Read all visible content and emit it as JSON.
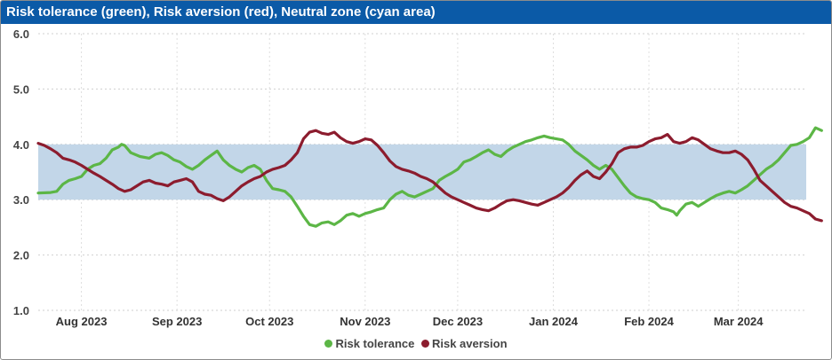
{
  "title": "Risk tolerance (green), Risk aversion (red), Neutral zone (cyan area)",
  "colors": {
    "header": "#0b5aa7",
    "tolerance": "#5cb646",
    "aversion": "#8c1c2e",
    "band": "#c2d6e8"
  },
  "chart_data": {
    "type": "line",
    "ylim": [
      1.0,
      6.0
    ],
    "yticks": [
      "1.0",
      "2.0",
      "3.0",
      "4.0",
      "5.0",
      "6.0"
    ],
    "neutral_zone": [
      3.0,
      4.0
    ],
    "x_tick_labels": [
      {
        "label": "Aug 2023",
        "day": 14
      },
      {
        "label": "Sep 2023",
        "day": 45
      },
      {
        "label": "Oct 2023",
        "day": 75
      },
      {
        "label": "Nov 2023",
        "day": 106
      },
      {
        "label": "Dec 2023",
        "day": 136
      },
      {
        "label": "Jan 2024",
        "day": 167
      },
      {
        "label": "Feb 2024",
        "day": 198
      },
      {
        "label": "Mar 2024",
        "day": 227
      }
    ],
    "x_range_days": [
      0,
      249
    ],
    "grid": "dotted",
    "legend_position": "bottom",
    "series": [
      {
        "name": "Risk tolerance",
        "color": "#5cb646",
        "points": [
          [
            0,
            3.12
          ],
          [
            4,
            3.13
          ],
          [
            6,
            3.15
          ],
          [
            8,
            3.28
          ],
          [
            10,
            3.35
          ],
          [
            12,
            3.38
          ],
          [
            14,
            3.42
          ],
          [
            16,
            3.55
          ],
          [
            18,
            3.62
          ],
          [
            20,
            3.65
          ],
          [
            22,
            3.75
          ],
          [
            24,
            3.9
          ],
          [
            26,
            3.95
          ],
          [
            27,
            4.0
          ],
          [
            28,
            3.98
          ],
          [
            30,
            3.85
          ],
          [
            33,
            3.78
          ],
          [
            36,
            3.75
          ],
          [
            38,
            3.82
          ],
          [
            40,
            3.85
          ],
          [
            42,
            3.8
          ],
          [
            44,
            3.72
          ],
          [
            46,
            3.68
          ],
          [
            48,
            3.6
          ],
          [
            50,
            3.55
          ],
          [
            52,
            3.62
          ],
          [
            54,
            3.72
          ],
          [
            56,
            3.8
          ],
          [
            58,
            3.88
          ],
          [
            60,
            3.72
          ],
          [
            62,
            3.62
          ],
          [
            64,
            3.55
          ],
          [
            66,
            3.5
          ],
          [
            68,
            3.58
          ],
          [
            70,
            3.62
          ],
          [
            72,
            3.55
          ],
          [
            74,
            3.35
          ],
          [
            76,
            3.2
          ],
          [
            78,
            3.18
          ],
          [
            80,
            3.15
          ],
          [
            82,
            3.05
          ],
          [
            84,
            2.88
          ],
          [
            86,
            2.7
          ],
          [
            88,
            2.55
          ],
          [
            90,
            2.52
          ],
          [
            92,
            2.58
          ],
          [
            94,
            2.6
          ],
          [
            96,
            2.55
          ],
          [
            98,
            2.62
          ],
          [
            100,
            2.72
          ],
          [
            102,
            2.75
          ],
          [
            104,
            2.7
          ],
          [
            106,
            2.75
          ],
          [
            108,
            2.78
          ],
          [
            110,
            2.82
          ],
          [
            112,
            2.85
          ],
          [
            114,
            3.0
          ],
          [
            116,
            3.1
          ],
          [
            118,
            3.15
          ],
          [
            120,
            3.08
          ],
          [
            122,
            3.05
          ],
          [
            124,
            3.1
          ],
          [
            126,
            3.15
          ],
          [
            128,
            3.2
          ],
          [
            130,
            3.35
          ],
          [
            132,
            3.42
          ],
          [
            134,
            3.48
          ],
          [
            136,
            3.55
          ],
          [
            138,
            3.68
          ],
          [
            140,
            3.72
          ],
          [
            142,
            3.78
          ],
          [
            144,
            3.85
          ],
          [
            146,
            3.9
          ],
          [
            148,
            3.82
          ],
          [
            150,
            3.78
          ],
          [
            152,
            3.88
          ],
          [
            154,
            3.95
          ],
          [
            156,
            4.0
          ],
          [
            158,
            4.05
          ],
          [
            160,
            4.08
          ],
          [
            162,
            4.12
          ],
          [
            164,
            4.15
          ],
          [
            166,
            4.12
          ],
          [
            168,
            4.1
          ],
          [
            170,
            4.08
          ],
          [
            172,
            4.0
          ],
          [
            174,
            3.88
          ],
          [
            176,
            3.8
          ],
          [
            178,
            3.72
          ],
          [
            180,
            3.62
          ],
          [
            182,
            3.55
          ],
          [
            184,
            3.62
          ],
          [
            186,
            3.55
          ],
          [
            188,
            3.4
          ],
          [
            190,
            3.25
          ],
          [
            192,
            3.12
          ],
          [
            194,
            3.05
          ],
          [
            196,
            3.02
          ],
          [
            198,
            3.0
          ],
          [
            200,
            2.95
          ],
          [
            202,
            2.85
          ],
          [
            204,
            2.82
          ],
          [
            206,
            2.78
          ],
          [
            207,
            2.72
          ],
          [
            208,
            2.8
          ],
          [
            210,
            2.92
          ],
          [
            212,
            2.95
          ],
          [
            214,
            2.88
          ],
          [
            216,
            2.95
          ],
          [
            218,
            3.02
          ],
          [
            220,
            3.08
          ],
          [
            222,
            3.12
          ],
          [
            224,
            3.15
          ],
          [
            226,
            3.12
          ],
          [
            228,
            3.18
          ],
          [
            230,
            3.25
          ],
          [
            232,
            3.35
          ],
          [
            234,
            3.45
          ],
          [
            236,
            3.55
          ],
          [
            238,
            3.62
          ],
          [
            240,
            3.72
          ],
          [
            242,
            3.85
          ],
          [
            244,
            3.98
          ],
          [
            246,
            4.0
          ],
          [
            248,
            4.05
          ],
          [
            250,
            4.12
          ],
          [
            252,
            4.3
          ],
          [
            254,
            4.25
          ]
        ]
      },
      {
        "name": "Risk aversion",
        "color": "#8c1c2e",
        "points": [
          [
            0,
            4.02
          ],
          [
            2,
            3.98
          ],
          [
            4,
            3.92
          ],
          [
            6,
            3.85
          ],
          [
            8,
            3.75
          ],
          [
            10,
            3.72
          ],
          [
            12,
            3.68
          ],
          [
            14,
            3.62
          ],
          [
            16,
            3.55
          ],
          [
            18,
            3.48
          ],
          [
            20,
            3.42
          ],
          [
            22,
            3.35
          ],
          [
            24,
            3.28
          ],
          [
            26,
            3.2
          ],
          [
            28,
            3.15
          ],
          [
            30,
            3.18
          ],
          [
            32,
            3.25
          ],
          [
            34,
            3.32
          ],
          [
            36,
            3.35
          ],
          [
            38,
            3.3
          ],
          [
            40,
            3.28
          ],
          [
            42,
            3.25
          ],
          [
            44,
            3.32
          ],
          [
            46,
            3.35
          ],
          [
            48,
            3.38
          ],
          [
            50,
            3.32
          ],
          [
            52,
            3.15
          ],
          [
            54,
            3.1
          ],
          [
            56,
            3.08
          ],
          [
            58,
            3.02
          ],
          [
            60,
            2.98
          ],
          [
            62,
            3.05
          ],
          [
            64,
            3.15
          ],
          [
            66,
            3.25
          ],
          [
            68,
            3.32
          ],
          [
            70,
            3.38
          ],
          [
            72,
            3.42
          ],
          [
            74,
            3.5
          ],
          [
            76,
            3.55
          ],
          [
            78,
            3.58
          ],
          [
            80,
            3.62
          ],
          [
            82,
            3.72
          ],
          [
            84,
            3.85
          ],
          [
            86,
            4.1
          ],
          [
            88,
            4.22
          ],
          [
            90,
            4.25
          ],
          [
            92,
            4.2
          ],
          [
            94,
            4.18
          ],
          [
            96,
            4.22
          ],
          [
            98,
            4.12
          ],
          [
            100,
            4.05
          ],
          [
            102,
            4.02
          ],
          [
            104,
            4.05
          ],
          [
            106,
            4.1
          ],
          [
            108,
            4.08
          ],
          [
            110,
            3.98
          ],
          [
            112,
            3.85
          ],
          [
            114,
            3.7
          ],
          [
            116,
            3.6
          ],
          [
            118,
            3.55
          ],
          [
            120,
            3.52
          ],
          [
            122,
            3.48
          ],
          [
            124,
            3.42
          ],
          [
            126,
            3.38
          ],
          [
            128,
            3.32
          ],
          [
            130,
            3.22
          ],
          [
            132,
            3.12
          ],
          [
            134,
            3.05
          ],
          [
            136,
            3.0
          ],
          [
            138,
            2.95
          ],
          [
            140,
            2.9
          ],
          [
            142,
            2.85
          ],
          [
            144,
            2.82
          ],
          [
            146,
            2.8
          ],
          [
            148,
            2.85
          ],
          [
            150,
            2.92
          ],
          [
            152,
            2.98
          ],
          [
            154,
            3.0
          ],
          [
            156,
            2.98
          ],
          [
            158,
            2.95
          ],
          [
            160,
            2.92
          ],
          [
            162,
            2.9
          ],
          [
            164,
            2.95
          ],
          [
            166,
            3.0
          ],
          [
            168,
            3.05
          ],
          [
            170,
            3.12
          ],
          [
            172,
            3.22
          ],
          [
            174,
            3.35
          ],
          [
            176,
            3.45
          ],
          [
            178,
            3.52
          ],
          [
            180,
            3.42
          ],
          [
            182,
            3.38
          ],
          [
            184,
            3.5
          ],
          [
            186,
            3.65
          ],
          [
            188,
            3.85
          ],
          [
            190,
            3.92
          ],
          [
            192,
            3.95
          ],
          [
            194,
            3.95
          ],
          [
            196,
            3.98
          ],
          [
            198,
            4.05
          ],
          [
            200,
            4.1
          ],
          [
            202,
            4.12
          ],
          [
            204,
            4.18
          ],
          [
            206,
            4.05
          ],
          [
            208,
            4.02
          ],
          [
            210,
            4.05
          ],
          [
            212,
            4.12
          ],
          [
            214,
            4.08
          ],
          [
            216,
            4.0
          ],
          [
            218,
            3.92
          ],
          [
            220,
            3.88
          ],
          [
            222,
            3.85
          ],
          [
            224,
            3.85
          ],
          [
            226,
            3.88
          ],
          [
            228,
            3.82
          ],
          [
            230,
            3.72
          ],
          [
            232,
            3.55
          ],
          [
            234,
            3.35
          ],
          [
            236,
            3.25
          ],
          [
            238,
            3.15
          ],
          [
            240,
            3.05
          ],
          [
            242,
            2.95
          ],
          [
            244,
            2.88
          ],
          [
            246,
            2.85
          ],
          [
            248,
            2.8
          ],
          [
            250,
            2.75
          ],
          [
            252,
            2.65
          ],
          [
            254,
            2.62
          ]
        ]
      }
    ]
  }
}
